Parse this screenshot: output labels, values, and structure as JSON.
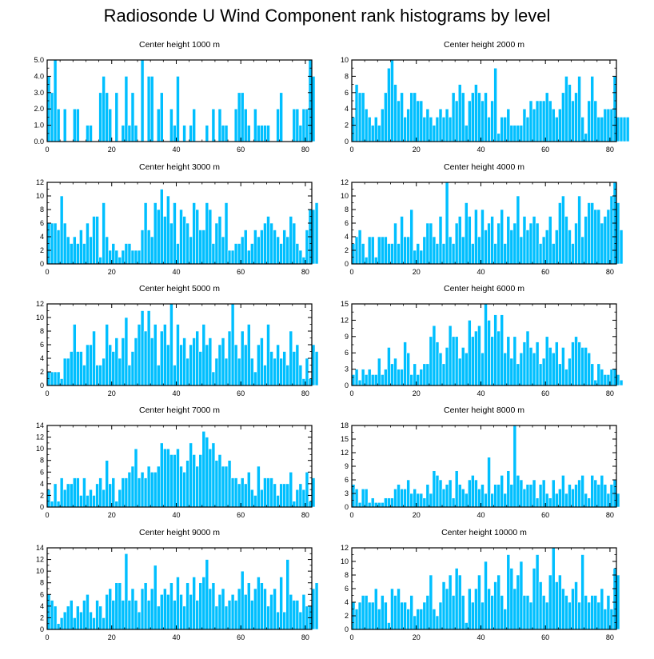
{
  "title": "Radiosonde U Wind Component rank histograms by level",
  "colors": {
    "bar": "#00bfff",
    "bar_edge": "#ffffff",
    "axis": "#000000",
    "background": "#ffffff"
  },
  "chart_data": [
    {
      "type": "bar",
      "title": "Center height 1000 m",
      "xlim": [
        0,
        82
      ],
      "ylim": [
        0,
        5
      ],
      "xticks": [
        0,
        20,
        40,
        60,
        80
      ],
      "xtick_labels": [
        "0",
        "20",
        "40",
        "60",
        "80"
      ],
      "yticks": [
        0,
        1,
        2,
        3,
        4,
        5
      ],
      "ytick_labels": [
        "0.0",
        "1.0",
        "2.0",
        "3.0",
        "4.0",
        "5.0"
      ],
      "values": [
        4,
        3,
        5,
        2,
        0,
        2,
        0,
        0,
        2,
        2,
        0,
        0,
        1,
        1,
        0,
        0,
        3,
        4,
        3,
        2,
        0,
        3,
        0,
        1,
        4,
        1,
        3,
        1,
        0,
        5,
        0,
        4,
        4,
        0,
        2,
        3,
        0,
        0,
        2,
        1,
        4,
        0,
        1,
        0,
        1,
        2,
        0,
        0,
        0,
        1,
        0,
        2,
        0,
        2,
        1,
        1,
        0,
        0,
        2,
        3,
        3,
        2,
        1,
        0,
        2,
        1,
        1,
        1,
        1,
        0,
        0,
        2,
        3,
        0,
        0,
        0,
        2,
        2,
        1,
        2,
        2,
        5,
        4
      ]
    },
    {
      "type": "bar",
      "title": "Center height 2000 m",
      "xlim": [
        0,
        82
      ],
      "ylim": [
        0,
        10
      ],
      "xticks": [
        0,
        20,
        40,
        60,
        80
      ],
      "xtick_labels": [
        "0",
        "20",
        "40",
        "60",
        "80"
      ],
      "yticks": [
        0,
        2,
        4,
        6,
        8,
        10
      ],
      "ytick_labels": [
        "0",
        "2",
        "4",
        "6",
        "8",
        "10"
      ],
      "values": [
        3,
        7,
        6,
        6,
        4,
        3,
        2,
        3,
        2,
        4,
        6,
        9,
        10,
        7,
        5,
        6,
        3,
        4,
        6,
        6,
        5,
        5,
        3,
        4,
        3,
        2,
        3,
        4,
        3,
        4,
        3,
        6,
        5,
        7,
        6,
        2,
        5,
        6,
        7,
        6,
        5,
        6,
        3,
        5,
        9,
        1,
        3,
        3,
        4,
        2,
        2,
        2,
        2,
        4,
        3,
        5,
        4,
        5,
        5,
        5,
        6,
        5,
        4,
        3,
        4,
        6,
        8,
        7,
        5,
        6,
        8,
        3,
        1,
        5,
        8,
        5,
        3,
        3,
        4,
        4,
        4,
        8,
        3,
        3,
        3,
        3
      ]
    },
    {
      "type": "bar",
      "title": "Center height 3000 m",
      "xlim": [
        0,
        82
      ],
      "ylim": [
        0,
        12
      ],
      "xticks": [
        0,
        20,
        40,
        60,
        80
      ],
      "xtick_labels": [
        "0",
        "20",
        "40",
        "60",
        "80"
      ],
      "yticks": [
        0,
        2,
        4,
        6,
        8,
        10,
        12
      ],
      "ytick_labels": [
        "0",
        "2",
        "4",
        "6",
        "8",
        "10",
        "12"
      ],
      "values": [
        6,
        6,
        6,
        5,
        10,
        6,
        4,
        3,
        4,
        3,
        5,
        3,
        6,
        4,
        7,
        7,
        1,
        9,
        4,
        2,
        3,
        2,
        1,
        2,
        3,
        3,
        2,
        2,
        2,
        5,
        9,
        5,
        4,
        9,
        8,
        11,
        7,
        10,
        6,
        9,
        3,
        8,
        7,
        6,
        4,
        9,
        8,
        5,
        5,
        9,
        8,
        3,
        6,
        7,
        4,
        9,
        2,
        2,
        3,
        3,
        4,
        5,
        2,
        3,
        5,
        4,
        5,
        6,
        7,
        6,
        5,
        4,
        3,
        5,
        4,
        7,
        6,
        3,
        2,
        1,
        5,
        8,
        8,
        9
      ]
    },
    {
      "type": "bar",
      "title": "Center height 4000 m",
      "xlim": [
        0,
        82
      ],
      "ylim": [
        0,
        12
      ],
      "xticks": [
        0,
        20,
        40,
        60,
        80
      ],
      "xtick_labels": [
        "0",
        "20",
        "40",
        "60",
        "80"
      ],
      "yticks": [
        0,
        2,
        4,
        6,
        8,
        10,
        12
      ],
      "ytick_labels": [
        "0",
        "2",
        "4",
        "6",
        "8",
        "10",
        "12"
      ],
      "values": [
        3,
        4,
        5,
        3,
        1,
        4,
        4,
        1,
        4,
        4,
        4,
        3,
        3,
        6,
        3,
        7,
        4,
        4,
        8,
        2,
        3,
        2,
        4,
        6,
        6,
        4,
        3,
        7,
        3,
        12,
        4,
        3,
        6,
        7,
        4,
        9,
        7,
        3,
        8,
        4,
        8,
        5,
        6,
        7,
        3,
        6,
        8,
        3,
        7,
        5,
        6,
        10,
        4,
        7,
        5,
        6,
        7,
        6,
        3,
        4,
        5,
        7,
        3,
        5,
        9,
        10,
        7,
        5,
        3,
        6,
        10,
        4,
        7,
        9,
        9,
        8,
        8,
        6,
        7,
        8,
        10,
        12,
        9,
        5
      ]
    },
    {
      "type": "bar",
      "title": "Center height 5000 m",
      "xlim": [
        0,
        82
      ],
      "ylim": [
        0,
        12
      ],
      "xticks": [
        0,
        20,
        40,
        60,
        80
      ],
      "xtick_labels": [
        "0",
        "20",
        "40",
        "60",
        "80"
      ],
      "yticks": [
        0,
        2,
        4,
        6,
        8,
        10,
        12
      ],
      "ytick_labels": [
        "0",
        "2",
        "4",
        "6",
        "8",
        "10",
        "12"
      ],
      "values": [
        2,
        2,
        2,
        2,
        1,
        4,
        4,
        5,
        9,
        5,
        5,
        3,
        6,
        6,
        8,
        3,
        3,
        4,
        9,
        6,
        5,
        7,
        4,
        7,
        10,
        3,
        5,
        7,
        9,
        11,
        8,
        11,
        7,
        9,
        3,
        8,
        9,
        6,
        12,
        3,
        9,
        6,
        7,
        4,
        6,
        7,
        8,
        5,
        9,
        6,
        7,
        2,
        4,
        6,
        7,
        4,
        8,
        12,
        6,
        4,
        8,
        6,
        9,
        4,
        2,
        6,
        7,
        3,
        9,
        5,
        4,
        6,
        4,
        5,
        3,
        8,
        5,
        6,
        3,
        1,
        4,
        1,
        6,
        5
      ]
    },
    {
      "type": "bar",
      "title": "Center height 6000 m",
      "xlim": [
        0,
        82
      ],
      "ylim": [
        0,
        15
      ],
      "xticks": [
        0,
        20,
        40,
        60,
        80
      ],
      "xtick_labels": [
        "0",
        "20",
        "40",
        "60",
        "80"
      ],
      "yticks": [
        0,
        3,
        6,
        9,
        12,
        15
      ],
      "ytick_labels": [
        "0",
        "3",
        "6",
        "9",
        "12",
        "15"
      ],
      "values": [
        2,
        3,
        1,
        3,
        2,
        3,
        2,
        2,
        5,
        2,
        3,
        7,
        4,
        5,
        3,
        3,
        8,
        6,
        2,
        4,
        2,
        3,
        4,
        4,
        9,
        11,
        8,
        6,
        4,
        7,
        11,
        9,
        9,
        5,
        7,
        6,
        12,
        9,
        10,
        11,
        6,
        15,
        12,
        9,
        13,
        10,
        13,
        6,
        9,
        5,
        9,
        4,
        6,
        8,
        10,
        7,
        6,
        8,
        4,
        5,
        9,
        7,
        6,
        8,
        4,
        7,
        3,
        5,
        8,
        9,
        8,
        7,
        7,
        6,
        4,
        1,
        4,
        3,
        2,
        2,
        3,
        3,
        2,
        1
      ]
    },
    {
      "type": "bar",
      "title": "Center height 7000 m",
      "xlim": [
        0,
        82
      ],
      "ylim": [
        0,
        14
      ],
      "xticks": [
        0,
        20,
        40,
        60,
        80
      ],
      "xtick_labels": [
        "0",
        "20",
        "40",
        "60",
        "80"
      ],
      "yticks": [
        0,
        2,
        4,
        6,
        8,
        10,
        12,
        14
      ],
      "ytick_labels": [
        "0",
        "2",
        "4",
        "6",
        "8",
        "10",
        "12",
        "14"
      ],
      "values": [
        3,
        1,
        4,
        1,
        5,
        3,
        4,
        4,
        5,
        5,
        2,
        5,
        2,
        3,
        2,
        4,
        5,
        3,
        8,
        4,
        5,
        1,
        3,
        5,
        5,
        6,
        7,
        10,
        5,
        6,
        5,
        7,
        6,
        6,
        7,
        11,
        10,
        10,
        9,
        9,
        10,
        7,
        6,
        8,
        11,
        9,
        7,
        9,
        13,
        12,
        10,
        11,
        8,
        9,
        7,
        7,
        8,
        5,
        5,
        4,
        5,
        4,
        6,
        3,
        2,
        7,
        3,
        5,
        5,
        5,
        4,
        2,
        4,
        4,
        4,
        6,
        1,
        3,
        4,
        3,
        6,
        1,
        5
      ]
    },
    {
      "type": "bar",
      "title": "Center height 8000 m",
      "xlim": [
        0,
        82
      ],
      "ylim": [
        0,
        18
      ],
      "xticks": [
        0,
        20,
        40,
        60,
        80
      ],
      "xtick_labels": [
        "0",
        "20",
        "40",
        "60",
        "80"
      ],
      "yticks": [
        0,
        3,
        6,
        9,
        12,
        15,
        18
      ],
      "ytick_labels": [
        "0",
        "3",
        "6",
        "9",
        "12",
        "15",
        "18"
      ],
      "values": [
        5,
        4,
        1,
        4,
        4,
        1,
        2,
        1,
        1,
        1,
        2,
        2,
        2,
        4,
        5,
        4,
        4,
        6,
        3,
        4,
        3,
        3,
        2,
        5,
        3,
        8,
        7,
        6,
        4,
        5,
        6,
        2,
        8,
        5,
        4,
        3,
        6,
        7,
        6,
        4,
        5,
        3,
        11,
        3,
        5,
        5,
        7,
        3,
        8,
        5,
        18,
        7,
        6,
        4,
        5,
        5,
        6,
        2,
        5,
        6,
        3,
        2,
        6,
        3,
        4,
        7,
        3,
        5,
        4,
        5,
        6,
        7,
        3,
        2,
        7,
        6,
        5,
        7,
        5,
        3,
        5,
        6,
        3
      ]
    },
    {
      "type": "bar",
      "title": "Center height 9000 m",
      "xlim": [
        0,
        82
      ],
      "ylim": [
        0,
        14
      ],
      "xticks": [
        0,
        20,
        40,
        60,
        80
      ],
      "xtick_labels": [
        "0",
        "20",
        "40",
        "60",
        "80"
      ],
      "yticks": [
        0,
        2,
        4,
        6,
        8,
        10,
        12,
        14
      ],
      "ytick_labels": [
        "0",
        "2",
        "4",
        "6",
        "8",
        "10",
        "12",
        "14"
      ],
      "values": [
        6,
        5,
        4,
        1,
        2,
        3,
        4,
        5,
        2,
        4,
        3,
        5,
        6,
        3,
        2,
        5,
        4,
        2,
        6,
        7,
        5,
        8,
        8,
        5,
        13,
        5,
        7,
        5,
        3,
        7,
        8,
        5,
        7,
        11,
        4,
        6,
        7,
        6,
        8,
        5,
        9,
        6,
        4,
        8,
        6,
        9,
        5,
        8,
        9,
        12,
        7,
        8,
        4,
        6,
        7,
        4,
        5,
        6,
        5,
        7,
        10,
        6,
        8,
        5,
        7,
        9,
        8,
        7,
        4,
        6,
        7,
        3,
        9,
        3,
        12,
        6,
        5,
        5,
        3,
        6,
        4,
        4,
        7,
        8
      ]
    },
    {
      "type": "bar",
      "title": "Center height 10000 m",
      "xlim": [
        0,
        82
      ],
      "ylim": [
        0,
        12
      ],
      "xticks": [
        0,
        20,
        40,
        60,
        80
      ],
      "xtick_labels": [
        "0",
        "20",
        "40",
        "60",
        "80"
      ],
      "yticks": [
        0,
        2,
        4,
        6,
        8,
        10,
        12
      ],
      "ytick_labels": [
        "0",
        "2",
        "4",
        "6",
        "8",
        "10",
        "12"
      ],
      "values": [
        4,
        3,
        4,
        5,
        5,
        4,
        4,
        6,
        3,
        5,
        4,
        1,
        6,
        5,
        6,
        4,
        4,
        3,
        5,
        2,
        3,
        3,
        4,
        5,
        8,
        3,
        2,
        4,
        7,
        6,
        8,
        5,
        9,
        8,
        5,
        1,
        6,
        4,
        6,
        8,
        4,
        10,
        6,
        5,
        7,
        8,
        5,
        3,
        11,
        9,
        6,
        8,
        10,
        5,
        5,
        4,
        9,
        11,
        7,
        5,
        4,
        8,
        12,
        7,
        8,
        6,
        5,
        4,
        6,
        7,
        4,
        11,
        5,
        4,
        5,
        5,
        4,
        6,
        3,
        5,
        3,
        9,
        8
      ]
    }
  ]
}
